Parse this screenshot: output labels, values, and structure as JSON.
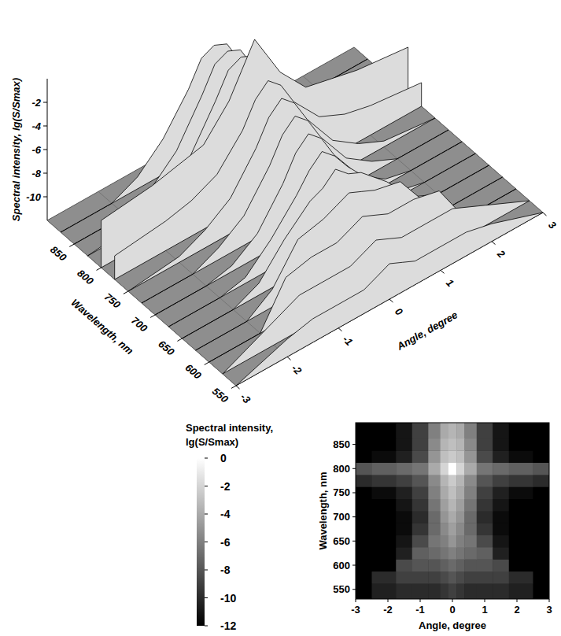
{
  "chart_data": [
    {
      "type": "surface3d",
      "x_label": "Angle, degree",
      "y_label": "Wavelength, nm",
      "z_label": "Spectral intensity, lg(S/Smax)",
      "x": [
        -3,
        -2,
        -1.5,
        -1,
        -0.5,
        -0.25,
        0,
        0.25,
        0.5,
        1,
        1.5,
        2,
        3
      ],
      "y": [
        550,
        575,
        600,
        625,
        650,
        675,
        700,
        725,
        750,
        775,
        800,
        825,
        850,
        875
      ],
      "z": [
        [
          -12,
          -10.5,
          -10,
          -10,
          -10,
          -9.5,
          -9,
          -9.5,
          -10,
          -10,
          -10,
          -10.5,
          -12
        ],
        [
          -12,
          -10,
          -9,
          -9,
          -9,
          -8.5,
          -8,
          -8.5,
          -9,
          -9,
          -9,
          -10,
          -12
        ],
        [
          -12,
          -12,
          -8.5,
          -8,
          -8,
          -7.5,
          -7,
          -7.5,
          -8,
          -8,
          -8.5,
          -12,
          -12
        ],
        [
          -12,
          -12,
          -10.5,
          -7.5,
          -7,
          -6.5,
          -6,
          -6.5,
          -7,
          -7.5,
          -10.5,
          -12,
          -12
        ],
        [
          -12,
          -12,
          -11,
          -8.5,
          -6.5,
          -6,
          -5,
          -6,
          -6.5,
          -8.5,
          -11,
          -12,
          -12
        ],
        [
          -12,
          -12,
          -11.5,
          -9.5,
          -7,
          -5.5,
          -4.5,
          -5.5,
          -7,
          -9.5,
          -11.5,
          -12,
          -12
        ],
        [
          -12,
          -12,
          -11.5,
          -10,
          -7,
          -5,
          -4,
          -5,
          -7,
          -10,
          -11.5,
          -12,
          -12
        ],
        [
          -12,
          -12,
          -11,
          -9.5,
          -6.5,
          -4.5,
          -3.5,
          -4.5,
          -6.5,
          -9.5,
          -11,
          -12,
          -12
        ],
        [
          -12,
          -11.5,
          -10.5,
          -9,
          -6,
          -4,
          -3,
          -4,
          -6,
          -9,
          -10.5,
          -11.5,
          -12
        ],
        [
          -10,
          -9.5,
          -9,
          -8,
          -5.5,
          -3.5,
          -2.5,
          -3.5,
          -5.5,
          -8,
          -9,
          -9.5,
          -10
        ],
        [
          -8,
          -7.5,
          -7,
          -6.5,
          -4,
          -2,
          0,
          -2,
          -4,
          -6.5,
          -7,
          -7.5,
          -8
        ],
        [
          -12,
          -11.5,
          -10.5,
          -8.5,
          -5,
          -3,
          -2.5,
          -3,
          -5,
          -8.5,
          -10.5,
          -11.5,
          -12
        ],
        [
          -12,
          -12,
          -11,
          -9,
          -5.5,
          -3.5,
          -3,
          -3.5,
          -5.5,
          -9,
          -11,
          -12,
          -12
        ],
        [
          -12,
          -12,
          -11,
          -9,
          -6,
          -4,
          -3.5,
          -4,
          -6,
          -9,
          -11,
          -12,
          -12
        ]
      ],
      "xlim": [
        -3,
        3
      ],
      "xticks": [
        -3,
        -2,
        -1,
        0,
        1,
        2,
        3
      ],
      "ylim": [
        550,
        900
      ],
      "yticks": [
        550,
        600,
        650,
        700,
        750,
        800,
        850
      ],
      "zlim": [
        -12,
        0
      ],
      "zticks": [
        -2,
        -4,
        -6,
        -8,
        -10
      ],
      "grid": true
    },
    {
      "type": "heatmap",
      "x_label": "Angle, degree",
      "y_label": "Wavelength, nm",
      "x": [
        -3,
        -2,
        -1.5,
        -1,
        -0.5,
        -0.25,
        0,
        0.25,
        0.5,
        1,
        1.5,
        2,
        3
      ],
      "y": [
        550,
        575,
        600,
        625,
        650,
        675,
        700,
        725,
        750,
        775,
        800,
        825,
        850,
        875
      ],
      "z": [
        [
          -12,
          -10.5,
          -10,
          -10,
          -10,
          -9.5,
          -9,
          -9.5,
          -10,
          -10,
          -10,
          -10.5,
          -12
        ],
        [
          -12,
          -10,
          -9,
          -9,
          -9,
          -8.5,
          -8,
          -8.5,
          -9,
          -9,
          -9,
          -10,
          -12
        ],
        [
          -12,
          -12,
          -8.5,
          -8,
          -8,
          -7.5,
          -7,
          -7.5,
          -8,
          -8,
          -8.5,
          -12,
          -12
        ],
        [
          -12,
          -12,
          -10.5,
          -7.5,
          -7,
          -6.5,
          -6,
          -6.5,
          -7,
          -7.5,
          -10.5,
          -12,
          -12
        ],
        [
          -12,
          -12,
          -11,
          -8.5,
          -6.5,
          -6,
          -5,
          -6,
          -6.5,
          -8.5,
          -11,
          -12,
          -12
        ],
        [
          -12,
          -12,
          -11.5,
          -9.5,
          -7,
          -5.5,
          -4.5,
          -5.5,
          -7,
          -9.5,
          -11.5,
          -12,
          -12
        ],
        [
          -12,
          -12,
          -11.5,
          -10,
          -7,
          -5,
          -4,
          -5,
          -7,
          -10,
          -11.5,
          -12,
          -12
        ],
        [
          -12,
          -12,
          -11,
          -9.5,
          -6.5,
          -4.5,
          -3.5,
          -4.5,
          -6.5,
          -9.5,
          -11,
          -12,
          -12
        ],
        [
          -12,
          -11.5,
          -10.5,
          -9,
          -6,
          -4,
          -3,
          -4,
          -6,
          -9,
          -10.5,
          -11.5,
          -12
        ],
        [
          -10,
          -9.5,
          -9,
          -8,
          -5.5,
          -3.5,
          -2.5,
          -3.5,
          -5.5,
          -8,
          -9,
          -9.5,
          -10
        ],
        [
          -8,
          -7.5,
          -7,
          -6.5,
          -4,
          -2,
          0,
          -2,
          -4,
          -6.5,
          -7,
          -7.5,
          -8
        ],
        [
          -12,
          -11.5,
          -10.5,
          -8.5,
          -5,
          -3,
          -2.5,
          -3,
          -5,
          -8.5,
          -10.5,
          -11.5,
          -12
        ],
        [
          -12,
          -12,
          -11,
          -9,
          -5.5,
          -3.5,
          -3,
          -3.5,
          -5.5,
          -9,
          -11,
          -12,
          -12
        ],
        [
          -12,
          -12,
          -11,
          -9,
          -6,
          -4,
          -3.5,
          -4,
          -6,
          -9,
          -11,
          -12,
          -12
        ]
      ],
      "xlim": [
        -3,
        3
      ],
      "xticks": [
        -3,
        -2,
        -1,
        0,
        1,
        2,
        3
      ],
      "ylim": [
        530,
        895
      ],
      "yticks": [
        550,
        600,
        650,
        700,
        750,
        800,
        850
      ],
      "colorbar": {
        "title": [
          "Spectral intensity,",
          "lg(S/Smax)"
        ],
        "range": [
          -12,
          0
        ],
        "ticks": [
          0,
          -2,
          -4,
          -6,
          -8,
          -10,
          -12
        ]
      }
    }
  ]
}
